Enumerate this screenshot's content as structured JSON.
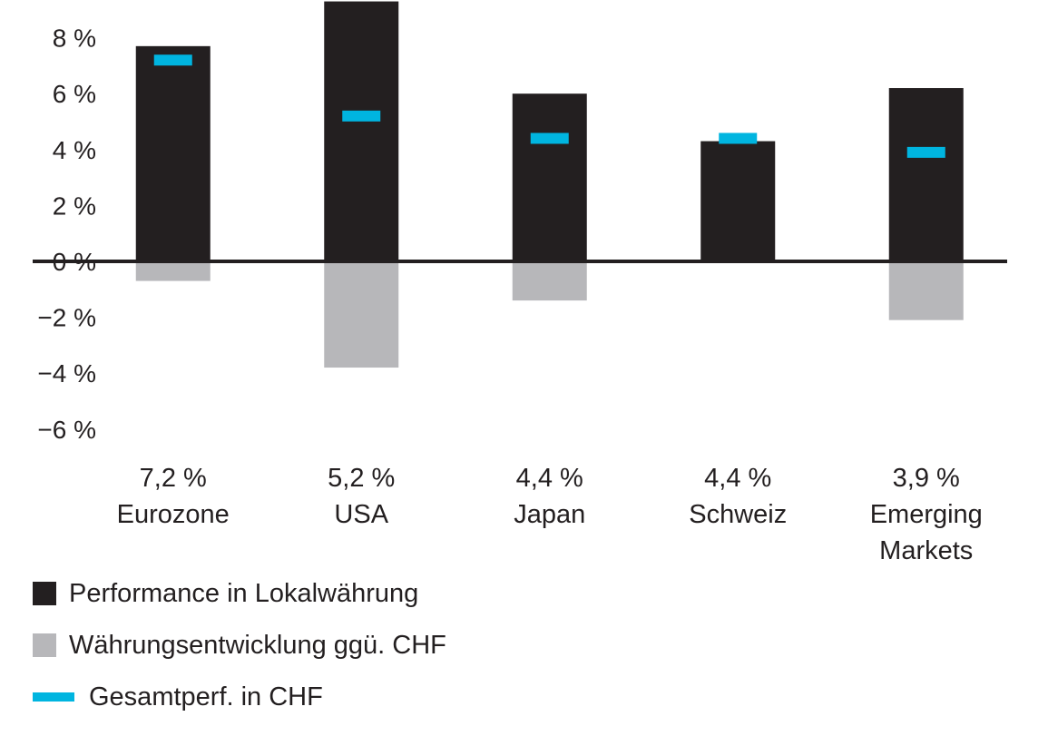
{
  "colors": {
    "local": "#231f20",
    "fx": "#b7b7ba",
    "total": "#00b5e0",
    "axis": "#231f20"
  },
  "chart_data": {
    "type": "bar",
    "categories": [
      "Eurozone",
      "USA",
      "Japan",
      "Schweiz",
      "Emerging Markets"
    ],
    "category_label_lines": [
      [
        "Eurozone"
      ],
      [
        "USA"
      ],
      [
        "Japan"
      ],
      [
        "Schweiz"
      ],
      [
        "Emerging",
        "Markets"
      ]
    ],
    "total_labels": [
      "7,2 %",
      "5,2 %",
      "4,4 %",
      "4,4 %",
      "3,9 %"
    ],
    "series": [
      {
        "name": "Performance in Lokalwährung",
        "kind": "bar",
        "values": [
          7.7,
          9.3,
          6.0,
          4.3,
          6.2
        ]
      },
      {
        "name": "Währungsentwicklung ggü. CHF",
        "kind": "bar",
        "values": [
          -0.7,
          -3.8,
          -1.4,
          0.0,
          -2.1
        ]
      },
      {
        "name": "Gesamtperf. in CHF",
        "kind": "marker",
        "values": [
          7.2,
          5.2,
          4.4,
          4.4,
          3.9
        ]
      }
    ],
    "y_ticks": [
      8,
      6,
      4,
      2,
      0,
      -2,
      -4,
      -6
    ],
    "y_tick_labels": [
      "8 %",
      "6 %",
      "4 %",
      "2 %",
      "0 %",
      "−2 %",
      "−4 %",
      "−6 %"
    ],
    "ylim": [
      -6,
      9.3
    ],
    "title": "",
    "xlabel": "",
    "ylabel": "",
    "grid": false,
    "legend_position": "bottom-left"
  },
  "legend": {
    "items": [
      {
        "label": "Performance in Lokalwährung",
        "kind": "box",
        "color": "#231f20"
      },
      {
        "label": "Währungsentwicklung ggü. CHF",
        "kind": "box",
        "color": "#b7b7ba"
      },
      {
        "label": "Gesamtperf. in CHF",
        "kind": "line",
        "color": "#00b5e0"
      }
    ]
  }
}
